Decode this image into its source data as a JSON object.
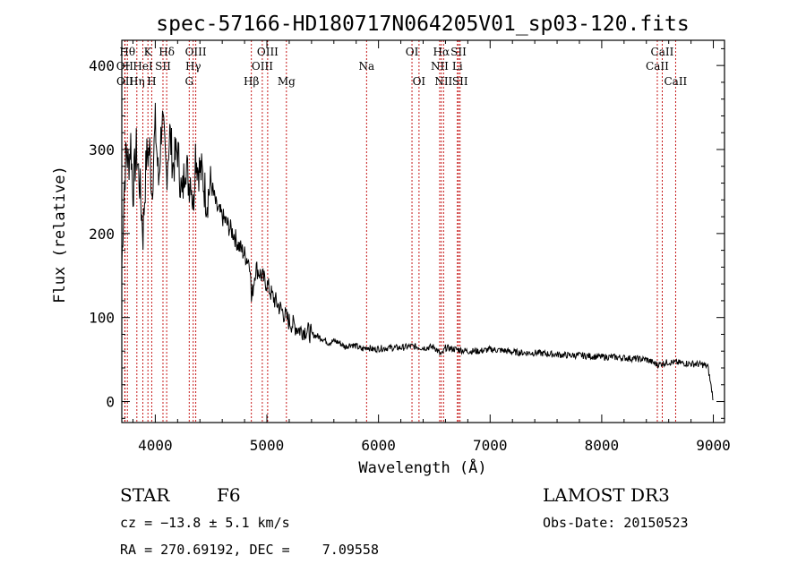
{
  "chart_data": {
    "type": "line",
    "title": "spec-57166-HD180717N064205V01_sp03-120.fits",
    "xlabel": "Wavelength (Å)",
    "ylabel": "Flux (relative)",
    "xlim": [
      3700,
      9100
    ],
    "ylim": [
      -25,
      430
    ],
    "xticks": [
      4000,
      5000,
      6000,
      7000,
      8000,
      9000
    ],
    "yticks": [
      0,
      100,
      200,
      300,
      400
    ],
    "x_tick_labels": [
      "4000",
      "5000",
      "6000",
      "7000",
      "8000",
      "9000"
    ],
    "y_tick_labels": [
      "0",
      "100",
      "200",
      "300",
      "400"
    ],
    "series": [
      {
        "name": "spectrum",
        "x": [
          3700,
          3720,
          3740,
          3760,
          3780,
          3800,
          3830,
          3860,
          3890,
          3920,
          3950,
          3970,
          4000,
          4030,
          4060,
          4100,
          4130,
          4160,
          4200,
          4240,
          4270,
          4300,
          4320,
          4340,
          4360,
          4380,
          4420,
          4460,
          4500,
          4550,
          4600,
          4650,
          4700,
          4750,
          4800,
          4850,
          4861,
          4900,
          4950,
          5000,
          5050,
          5100,
          5150,
          5200,
          5250,
          5300,
          5350,
          5400,
          5450,
          5500,
          5550,
          5600,
          5650,
          5700,
          5750,
          5800,
          5850,
          5900,
          5950,
          6000,
          6100,
          6200,
          6300,
          6400,
          6500,
          6563,
          6600,
          6700,
          6800,
          6900,
          7000,
          7100,
          7200,
          7300,
          7400,
          7500,
          7600,
          7700,
          7800,
          7900,
          8000,
          8100,
          8200,
          8300,
          8400,
          8500,
          8600,
          8700,
          8800,
          8900,
          8950,
          9000
        ],
        "y": [
          160,
          250,
          300,
          280,
          310,
          250,
          300,
          260,
          200,
          290,
          300,
          250,
          330,
          260,
          340,
          270,
          320,
          280,
          300,
          240,
          290,
          260,
          270,
          230,
          300,
          280,
          270,
          240,
          260,
          230,
          220,
          210,
          200,
          185,
          175,
          165,
          120,
          160,
          150,
          140,
          125,
          115,
          105,
          95,
          90,
          85,
          85,
          80,
          78,
          75,
          70,
          72,
          70,
          65,
          68,
          66,
          62,
          65,
          62,
          63,
          64,
          64,
          66,
          64,
          65,
          55,
          64,
          62,
          60,
          60,
          62,
          61,
          59,
          58,
          58,
          57,
          56,
          55,
          55,
          54,
          53,
          53,
          52,
          51,
          50,
          44,
          47,
          46,
          45,
          44,
          42,
          2
        ]
      }
    ],
    "line_markers": [
      {
        "name": "OII",
        "wavelength": 3727,
        "row": 2
      },
      {
        "name": "Hθ",
        "wavelength": 3750,
        "row": 1
      },
      {
        "name": "OII",
        "wavelength": 3729,
        "row": 3
      },
      {
        "name": "Hη",
        "wavelength": 3835,
        "row": 3
      },
      {
        "name": "K",
        "wavelength": 3934,
        "row": 1
      },
      {
        "name": "HeI",
        "wavelength": 3889,
        "row": 2
      },
      {
        "name": "H",
        "wavelength": 3968,
        "row": 3
      },
      {
        "name": "SII",
        "wavelength": 4069,
        "row": 2
      },
      {
        "name": "Hδ",
        "wavelength": 4102,
        "row": 1
      },
      {
        "name": "OIII",
        "wavelength": 4363,
        "row": 1
      },
      {
        "name": "Hγ",
        "wavelength": 4340,
        "row": 2
      },
      {
        "name": "G",
        "wavelength": 4304,
        "row": 3
      },
      {
        "name": "OIII",
        "wavelength": 5007,
        "row": 1
      },
      {
        "name": "OIII",
        "wavelength": 4959,
        "row": 2
      },
      {
        "name": "Hβ",
        "wavelength": 4861,
        "row": 3
      },
      {
        "name": "Mg",
        "wavelength": 5175,
        "row": 3
      },
      {
        "name": "Na",
        "wavelength": 5893,
        "row": 2
      },
      {
        "name": "OI",
        "wavelength": 6300,
        "row": 1
      },
      {
        "name": "OI",
        "wavelength": 6363,
        "row": 3
      },
      {
        "name": "Hα",
        "wavelength": 6563,
        "row": 1
      },
      {
        "name": "NII",
        "wavelength": 6548,
        "row": 2
      },
      {
        "name": "NII",
        "wavelength": 6583,
        "row": 3
      },
      {
        "name": "SII",
        "wavelength": 6717,
        "row": 1
      },
      {
        "name": "Li",
        "wavelength": 6707,
        "row": 2
      },
      {
        "name": "SII",
        "wavelength": 6731,
        "row": 3
      },
      {
        "name": "CaII",
        "wavelength": 8542,
        "row": 1
      },
      {
        "name": "CaII",
        "wavelength": 8498,
        "row": 2
      },
      {
        "name": "CaII",
        "wavelength": 8662,
        "row": 3
      }
    ]
  },
  "info": {
    "object_class": "STAR",
    "subclass": "F6",
    "survey": "LAMOST DR3",
    "redshift": "cz = −13.8 ± 5.1 km/s",
    "obs_date": "Obs-Date: 20150523",
    "coords": "RA = 270.69192, DEC =    7.09558"
  },
  "colors": {
    "marker": "#c00000",
    "spectrum": "#000000",
    "axis": "#000000"
  }
}
